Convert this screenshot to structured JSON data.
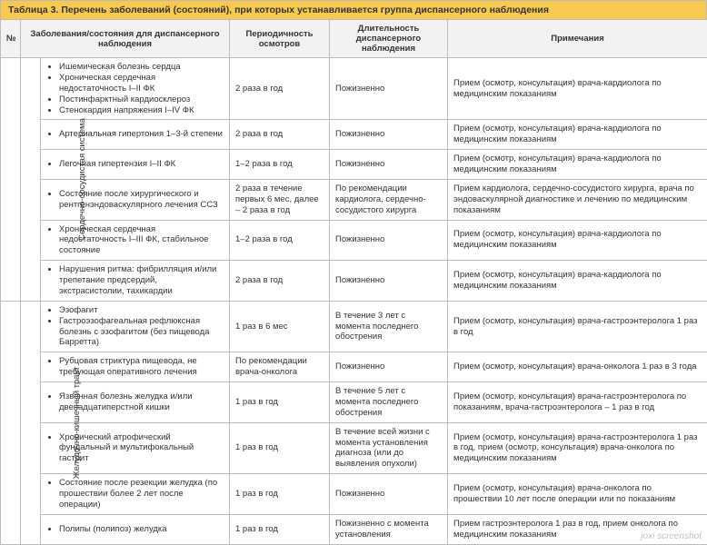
{
  "caption": "Таблица 3. Перечень заболеваний (состояний), при которых устанавливается группа диспансерного наблюдения",
  "headers": {
    "num": "№",
    "diseases": "Заболевания/состояния для диспансерного наблюдения",
    "frequency": "Периодичность осмотров",
    "duration": "Длительность диспансерного наблюдения",
    "notes": "Примечания"
  },
  "groups": [
    {
      "title": "Сердечно-сосудистая система",
      "rows": [
        {
          "dis": [
            "Ишемическая болезнь сердца",
            "Хроническая сердечная недостаточность I–II ФК",
            "Постинфарктный кардиосклероз",
            "Стенокардия напряжения I–IV ФК"
          ],
          "freq": "2 раза в год",
          "dur": "Пожизненно",
          "notes": "Прием (осмотр, консультация) врача-кардиолога по медицинским показаниям"
        },
        {
          "dis": [
            "Артериальная гипертония 1–3-й степени"
          ],
          "freq": "2 раза в год",
          "dur": "Пожизненно",
          "notes": "Прием (осмотр, консультация) врача-кардиолога по медицинским показаниям"
        },
        {
          "dis": [
            "Легочная гипертензия I–II ФК"
          ],
          "freq": "1–2 раза в год",
          "dur": "Пожизненно",
          "notes": "Прием (осмотр, консультация) врача-кардиолога по медицинским показаниям"
        },
        {
          "dis": [
            "Состояние после хирургического и рентгенэндоваскулярного лечения ССЗ"
          ],
          "freq": "2 раза в течение первых 6 мес, далее – 2 раза в год",
          "dur": "По рекомендации кардиолога, сердечно-сосудистого хирурга",
          "notes": "Прием кардиолога, сердечно-сосудистого хирурга, врача по эндоваскулярной диагностике и лечению по медицинским показаниям"
        },
        {
          "dis": [
            "Хроническая сердечная недостаточность I–III ФК, стабильное состояние"
          ],
          "freq": "1–2 раза в год",
          "dur": "Пожизненно",
          "notes": "Прием (осмотр, консультация) врача-кардиолога по медицинским показаниям"
        },
        {
          "dis": [
            "Нарушения ритма: фибрилляция и/или трепетание предсердий, экстрасистолии, тахикардии"
          ],
          "freq": "2 раза в год",
          "dur": "Пожизненно",
          "notes": "Прием (осмотр, консультация) врача-кардиолога по медицинским показаниям"
        }
      ]
    },
    {
      "title": "Желудочно-кишечный тракт",
      "rows": [
        {
          "dis": [
            "Эзофагит",
            "Гастроэзофагеальная рефлюксная болезнь с эзофагитом (без пищевода Барретта)"
          ],
          "freq": "1 раз в 6 мес",
          "dur": "В течение 3 лет с момента последнего обострения",
          "notes": "Прием (осмотр, консультация) врача-гастроэнтеролога 1 раз в год"
        },
        {
          "dis": [
            "Рубцовая стриктура пищевода, не требующая оперативного лечения"
          ],
          "freq": "По рекомендации врача-онколога",
          "dur": "Пожизненно",
          "notes": "Прием (осмотр, консультация) врача-онколога 1 раз в 3 года"
        },
        {
          "dis": [
            "Язвенная болезнь желудка и/или двенадцатиперстной кишки"
          ],
          "freq": "1 раз в год",
          "dur": "В течение 5 лет с момента последнего обострения",
          "notes": "Прием (осмотр, консультация) врача-гастроэнтеролога по показаниям, врача-гастроэнтеролога – 1 раз в год"
        },
        {
          "dis": [
            "Хронический атрофический фундальный и мультифокальный гастрит"
          ],
          "freq": "1 раз в год",
          "dur": "В течение всей жизни с момента установления диагноза (или до выявления опухоли)",
          "notes": "Прием (осмотр, консультация) врача-гастроэнтеролога 1 раз в год, прием (осмотр, консультация) врача-онколога по медицинским показаниям"
        },
        {
          "dis": [
            "Состояние после резекции желудка (по прошествии более 2 лет после операции)"
          ],
          "freq": "1 раз в год",
          "dur": "Пожизненно",
          "notes": "Прием (осмотр, консультация) врача-онколога по прошествии 10 лет после операции или по показаниям"
        },
        {
          "dis": [
            "Полипы (полипоз) желудка"
          ],
          "freq": "1 раз в год",
          "dur": "Пожизненно с момента установления",
          "notes": "Прием гастроэнтеролога 1 раз в год, прием онколога по медицинским показаниям"
        }
      ]
    }
  ],
  "watermark": "joxi screenshot",
  "style": {
    "caption_bg": "#f7c94e",
    "header_bg": "#f2f2f2",
    "border_color": "#bbbbbb",
    "font_family": "Arial",
    "base_fontsize_pt": 9.5
  }
}
